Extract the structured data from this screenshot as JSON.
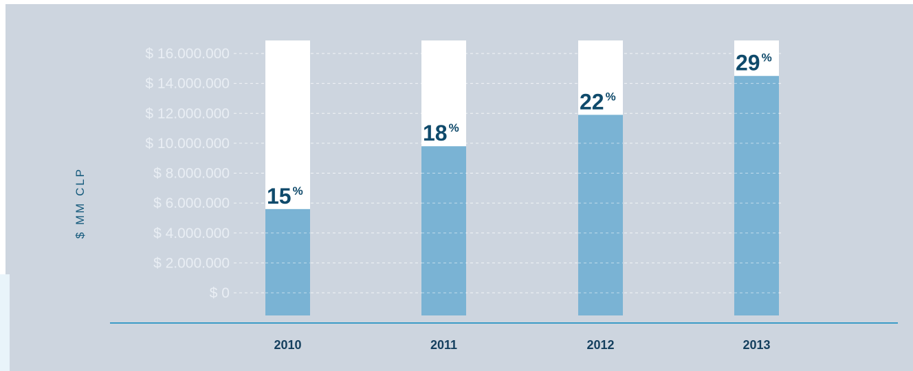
{
  "chart_data": {
    "type": "bar",
    "ylabel": "$ MM CLP",
    "y_tick_labels": [
      "$ 0",
      "$ 2.000.000",
      "$ 4.000.000",
      "$ 6.000.000",
      "$ 8.000.000",
      "$ 10.000.000",
      "$ 12.000.000",
      "$ 14.000.000",
      "$ 16.000.000"
    ],
    "ylim": [
      0,
      16000000
    ],
    "categories": [
      "2010",
      "2011",
      "2012",
      "2013"
    ],
    "values": [
      5600000,
      9800000,
      11900000,
      14500000
    ],
    "data_labels": [
      "15",
      "18",
      "22",
      "29"
    ],
    "label_unit": "%",
    "grid": true,
    "colors": {
      "background": "#cdd5df",
      "bar": "#7ab3d4",
      "column_track": "#ffffff",
      "label": "#0f4a6b",
      "baseline": "#3a9bc6",
      "tick": "#e9eef4",
      "axis_title": "#155a7c"
    }
  }
}
